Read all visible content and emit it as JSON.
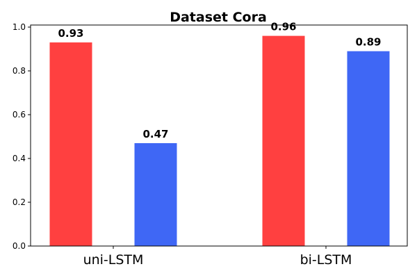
{
  "chart_data": {
    "type": "bar",
    "title": "Dataset Cora",
    "xlabel": "",
    "ylabel": "",
    "categories": [
      "uni-LSTM",
      "bi-LSTM"
    ],
    "series": [
      {
        "color": "#ff4040",
        "values": [
          0.93,
          0.96
        ]
      },
      {
        "color": "#3f67f5",
        "values": [
          0.47,
          0.89
        ]
      }
    ],
    "data_labels": [
      [
        "0.93",
        "0.96"
      ],
      [
        "0.47",
        "0.89"
      ]
    ],
    "ylim": [
      0,
      1.0
    ],
    "yticks": [
      0.0,
      0.2,
      0.4,
      0.6,
      0.8,
      1.0
    ],
    "ytick_labels": [
      "0.0",
      "0.2",
      "0.4",
      "0.6",
      "0.8",
      "1.0"
    ],
    "grid": false,
    "legend": "none"
  }
}
